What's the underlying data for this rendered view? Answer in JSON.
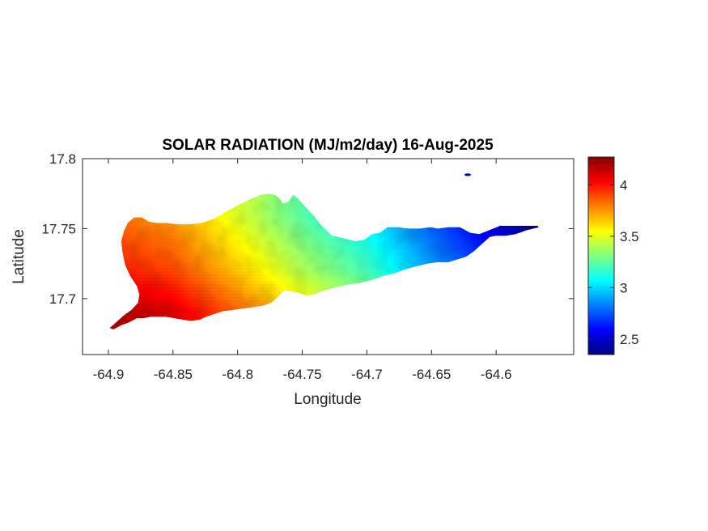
{
  "chart_data": {
    "type": "heatmap",
    "title": "SOLAR RADIATION (MJ/m2/day) 16-Aug-2025",
    "xlabel": "Longitude",
    "ylabel": "Latitude",
    "xlim": [
      -64.92,
      -64.54
    ],
    "ylim": [
      17.66,
      17.8
    ],
    "xticks": [
      -64.9,
      -64.85,
      -64.8,
      -64.75,
      -64.7,
      -64.65,
      -64.6
    ],
    "xtick_labels": [
      "-64.9",
      "-64.85",
      "-64.8",
      "-64.75",
      "-64.7",
      "-64.65",
      "-64.6"
    ],
    "yticks": [
      17.7,
      17.75,
      17.8
    ],
    "ytick_labels": [
      "17.7",
      "17.75",
      "17.8"
    ],
    "grid": false,
    "colormap": "jet",
    "colorbar": {
      "range": [
        2.35,
        4.27
      ],
      "ticks": [
        2.5,
        3,
        3.5,
        4
      ],
      "tick_labels": [
        "2.5",
        "3",
        "3.5",
        "4"
      ]
    },
    "gradient_west_to_east": [
      {
        "lon": -64.9,
        "value": 3.95
      },
      {
        "lon": -64.85,
        "value": 3.85
      },
      {
        "lon": -64.8,
        "value": 3.6
      },
      {
        "lon": -64.75,
        "value": 3.35
      },
      {
        "lon": -64.7,
        "value": 3.15
      },
      {
        "lon": -64.65,
        "value": 2.85
      },
      {
        "lon": -64.6,
        "value": 2.6
      },
      {
        "lon": -64.565,
        "value": 2.4
      }
    ],
    "latitude_offset": [
      {
        "lat": 17.69,
        "delta": 0.25
      },
      {
        "lat": 17.72,
        "delta": 0.05
      },
      {
        "lat": 17.76,
        "delta": -0.12
      }
    ],
    "island_outline": [
      [
        -64.899,
        17.679
      ],
      [
        -64.894,
        17.683
      ],
      [
        -64.888,
        17.688
      ],
      [
        -64.882,
        17.692
      ],
      [
        -64.877,
        17.697
      ],
      [
        -64.876,
        17.703
      ],
      [
        -64.878,
        17.709
      ],
      [
        -64.883,
        17.716
      ],
      [
        -64.887,
        17.724
      ],
      [
        -64.889,
        17.733
      ],
      [
        -64.89,
        17.741
      ],
      [
        -64.888,
        17.748
      ],
      [
        -64.885,
        17.754
      ],
      [
        -64.88,
        17.758
      ],
      [
        -64.874,
        17.758
      ],
      [
        -64.869,
        17.755
      ],
      [
        -64.863,
        17.754
      ],
      [
        -64.855,
        17.754
      ],
      [
        -64.847,
        17.753
      ],
      [
        -64.838,
        17.753
      ],
      [
        -64.828,
        17.754
      ],
      [
        -64.818,
        17.757
      ],
      [
        -64.809,
        17.762
      ],
      [
        -64.799,
        17.767
      ],
      [
        -64.79,
        17.771
      ],
      [
        -64.782,
        17.774
      ],
      [
        -64.776,
        17.775
      ],
      [
        -64.771,
        17.774
      ],
      [
        -64.768,
        17.772
      ],
      [
        -64.765,
        17.768
      ],
      [
        -64.761,
        17.769
      ],
      [
        -64.757,
        17.774
      ],
      [
        -64.754,
        17.772
      ],
      [
        -64.748,
        17.766
      ],
      [
        -64.741,
        17.759
      ],
      [
        -64.735,
        17.752
      ],
      [
        -64.727,
        17.745
      ],
      [
        -64.718,
        17.743
      ],
      [
        -64.709,
        17.741
      ],
      [
        -64.702,
        17.742
      ],
      [
        -64.696,
        17.746
      ],
      [
        -64.69,
        17.747
      ],
      [
        -64.684,
        17.751
      ],
      [
        -64.676,
        17.751
      ],
      [
        -64.668,
        17.75
      ],
      [
        -64.659,
        17.75
      ],
      [
        -64.651,
        17.751
      ],
      [
        -64.645,
        17.75
      ],
      [
        -64.637,
        17.751
      ],
      [
        -64.628,
        17.751
      ],
      [
        -64.62,
        17.747
      ],
      [
        -64.613,
        17.746
      ],
      [
        -64.605,
        17.749
      ],
      [
        -64.597,
        17.752
      ],
      [
        -64.59,
        17.752
      ],
      [
        -64.583,
        17.752
      ],
      [
        -64.575,
        17.752
      ],
      [
        -64.568,
        17.752
      ],
      [
        -64.567,
        17.751
      ],
      [
        -64.576,
        17.749
      ],
      [
        -64.585,
        17.746
      ],
      [
        -64.592,
        17.745
      ],
      [
        -64.6,
        17.745
      ],
      [
        -64.605,
        17.744
      ],
      [
        -64.611,
        17.739
      ],
      [
        -64.617,
        17.734
      ],
      [
        -64.623,
        17.73
      ],
      [
        -64.63,
        17.728
      ],
      [
        -64.637,
        17.726
      ],
      [
        -64.645,
        17.726
      ],
      [
        -64.653,
        17.725
      ],
      [
        -64.662,
        17.723
      ],
      [
        -64.67,
        17.721
      ],
      [
        -64.679,
        17.718
      ],
      [
        -64.688,
        17.716
      ],
      [
        -64.697,
        17.713
      ],
      [
        -64.706,
        17.711
      ],
      [
        -64.715,
        17.71
      ],
      [
        -64.724,
        17.708
      ],
      [
        -64.733,
        17.706
      ],
      [
        -64.741,
        17.703
      ],
      [
        -64.747,
        17.702
      ],
      [
        -64.752,
        17.704
      ],
      [
        -64.758,
        17.705
      ],
      [
        -64.764,
        17.706
      ],
      [
        -64.769,
        17.701
      ],
      [
        -64.774,
        17.697
      ],
      [
        -64.78,
        17.695
      ],
      [
        -64.787,
        17.694
      ],
      [
        -64.795,
        17.693
      ],
      [
        -64.803,
        17.692
      ],
      [
        -64.811,
        17.691
      ],
      [
        -64.818,
        17.689
      ],
      [
        -64.824,
        17.687
      ],
      [
        -64.829,
        17.685
      ],
      [
        -64.836,
        17.684
      ],
      [
        -64.843,
        17.685
      ],
      [
        -64.849,
        17.686
      ],
      [
        -64.856,
        17.687
      ],
      [
        -64.862,
        17.687
      ],
      [
        -64.867,
        17.687
      ],
      [
        -64.873,
        17.686
      ],
      [
        -64.878,
        17.686
      ],
      [
        -64.884,
        17.683
      ],
      [
        -64.89,
        17.681
      ],
      [
        -64.896,
        17.678
      ],
      [
        -64.899,
        17.679
      ]
    ],
    "islet": {
      "lon": -64.622,
      "lat": 17.7885,
      "value": 2.45
    }
  }
}
